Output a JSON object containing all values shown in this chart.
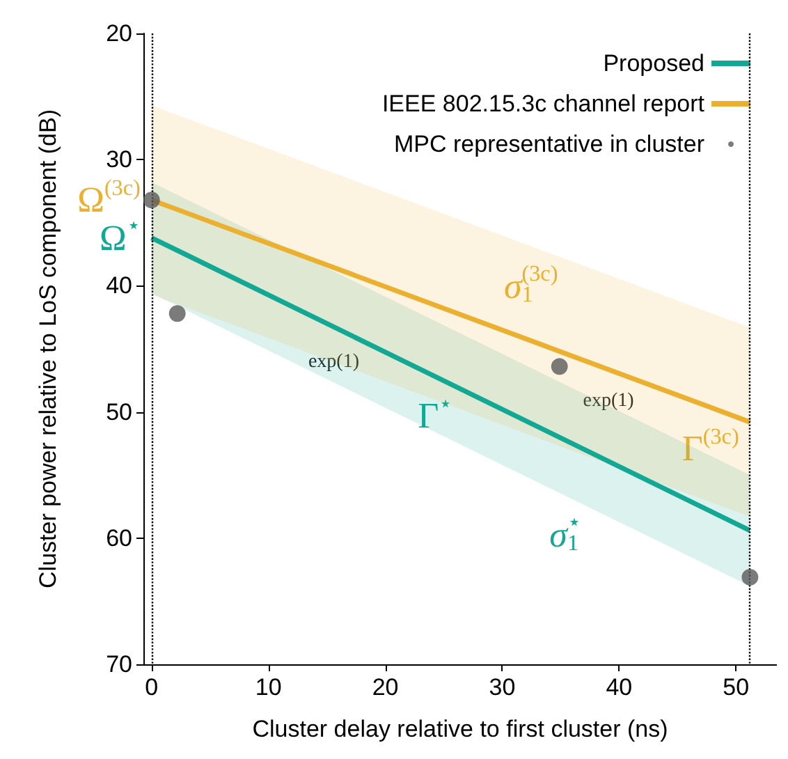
{
  "chart_data": {
    "type": "line",
    "xlabel": "Cluster delay relative to first cluster (ns)",
    "ylabel": "Cluster power relative to LoS component (dB)",
    "xlim": [
      -0.7,
      53.5
    ],
    "ylim": [
      70,
      20
    ],
    "xticks": [
      0,
      10,
      20,
      30,
      40,
      50
    ],
    "yticks": [
      20,
      30,
      40,
      50,
      60,
      70
    ],
    "grid": false,
    "legend": "top right",
    "series": [
      {
        "name": "Proposed",
        "color": "#13a894",
        "x": [
          0,
          51.2
        ],
        "values": [
          36.2,
          59.4
        ],
        "lower": [
          31.8,
          55
        ],
        "upper": [
          40.6,
          63.8
        ]
      },
      {
        "name": "IEEE 802.15.3c channel report",
        "color": "#ebb030",
        "x": [
          0,
          51.2
        ],
        "values": [
          33.2,
          50.8
        ],
        "lower": [
          25.7,
          43.3
        ],
        "upper": [
          40.7,
          58.3
        ]
      },
      {
        "name": "MPC representative in cluster",
        "type": "scatter",
        "color": "#5a5a5a",
        "marker": "circle",
        "x": [
          0,
          2.2,
          34.9,
          51.2
        ],
        "values": [
          33.2,
          42.2,
          46.4,
          63.1
        ]
      }
    ],
    "ref_lines": [
      {
        "axis": "x",
        "value": 0,
        "line_style": "dotted",
        "color": "#000000"
      },
      {
        "axis": "x",
        "value": 51.2,
        "line_style": "dotted",
        "color": "#000000"
      }
    ],
    "annotations": [
      {
        "text": "Ω$^{(3c)}$",
        "x": 0,
        "y": 33.2
      },
      {
        "text": "Ω$^{⋆}$",
        "x": 0,
        "y": 36.2
      },
      {
        "text": "σ$_{1}$$^{(3c)}$",
        "x": 35,
        "y": 37.7
      },
      {
        "text": "exp(1)",
        "x": 18,
        "y": 44.4
      },
      {
        "text": "Γ$^{⋆}$",
        "x": 26,
        "y": 48
      },
      {
        "text": "exp(1)",
        "x": 41.5,
        "y": 47.5
      },
      {
        "text": "Γ$^{(3c)}$",
        "x": 50.5,
        "y": 50.6
      },
      {
        "text": "σ$_{1}$$^{⋆}$",
        "x": 37,
        "y": 57.4
      }
    ]
  }
}
